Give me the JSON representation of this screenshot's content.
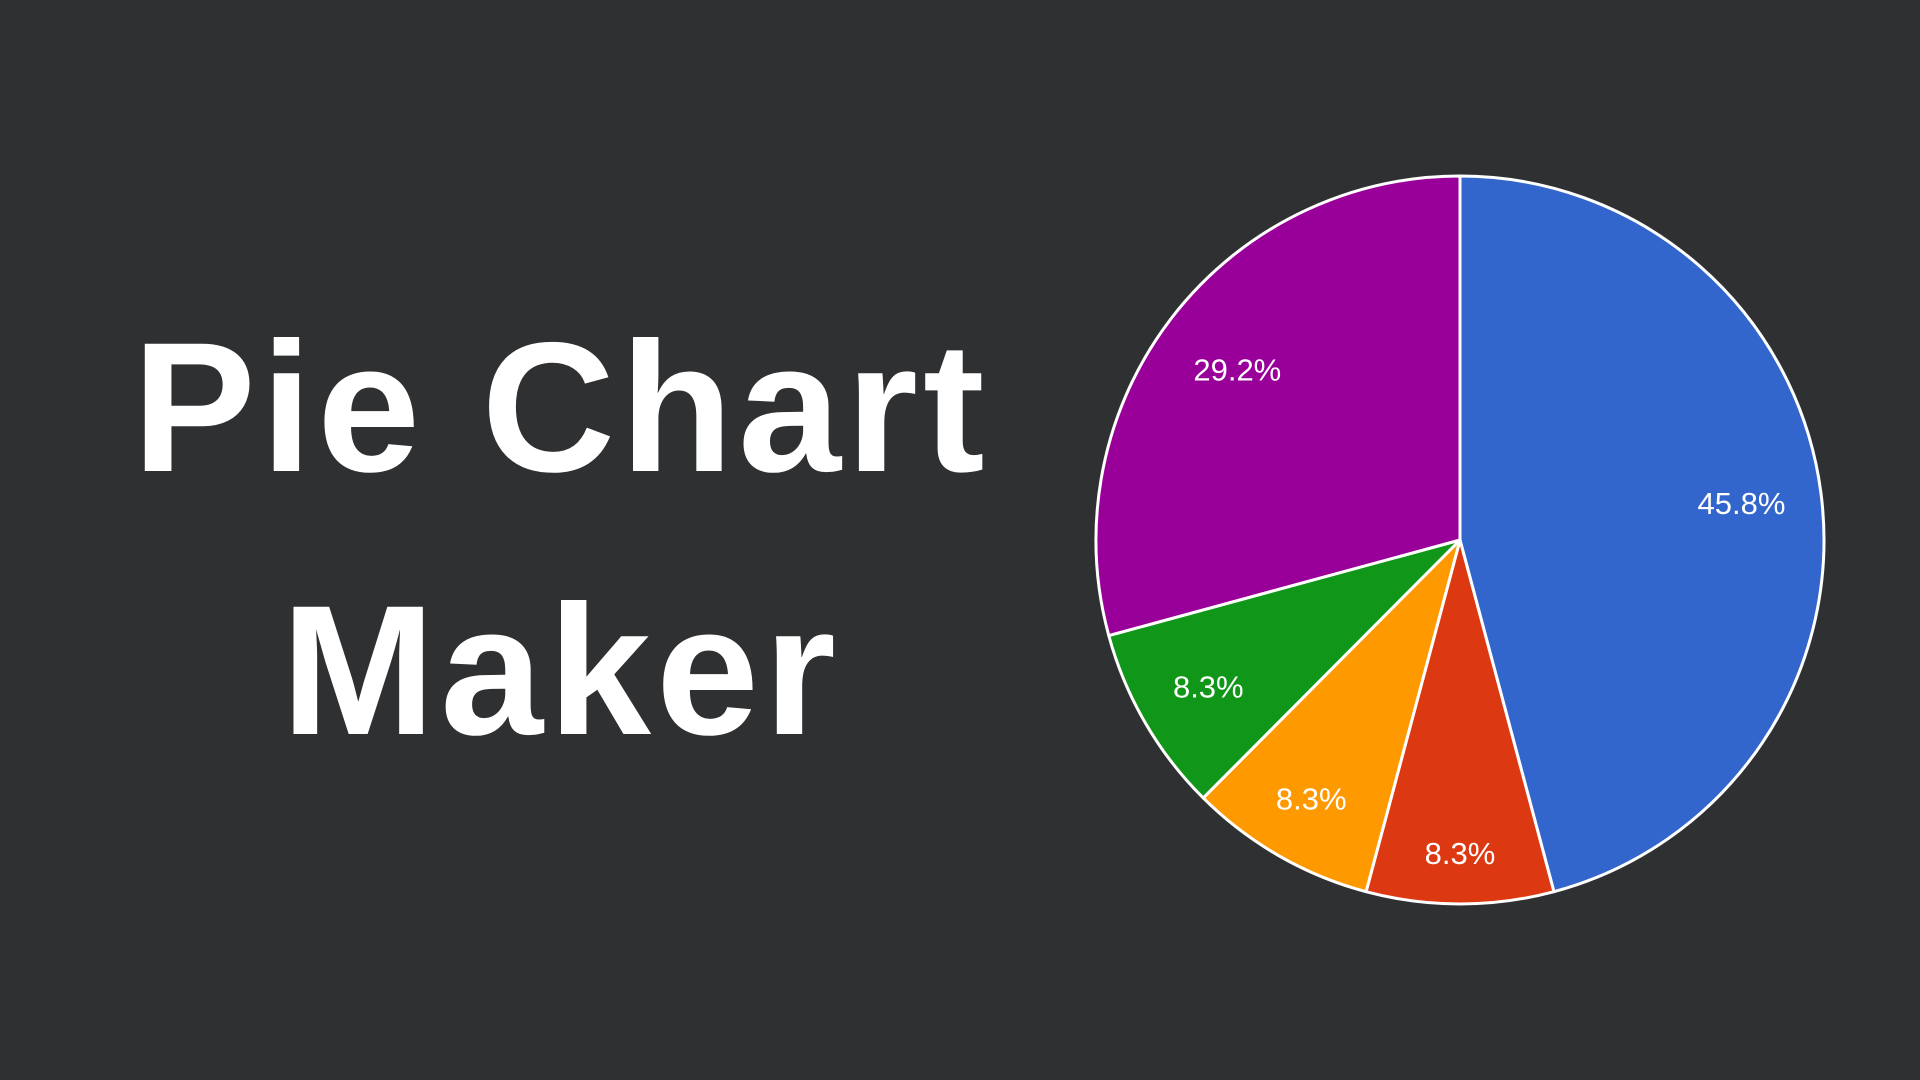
{
  "page": {
    "background_color": "#2f3032",
    "title": {
      "line1": "Pie Chart",
      "line2": "Maker",
      "color": "#ffffff"
    }
  },
  "chart_data": {
    "type": "pie",
    "title": "",
    "legend_position": "none",
    "start_at": "12-oclock",
    "direction": "clockwise",
    "slice_border_color": "#ffffff",
    "label_color": "#ffffff",
    "label_style": "percent-inside-slice",
    "slices": [
      {
        "label": "45.8%",
        "value": 45.8,
        "color": "#3366cc"
      },
      {
        "label": "8.3%",
        "value": 8.3,
        "color": "#dc3912"
      },
      {
        "label": "8.3%",
        "value": 8.3,
        "color": "#ff9900"
      },
      {
        "label": "8.3%",
        "value": 8.3,
        "color": "#109618"
      },
      {
        "label": "29.2%",
        "value": 29.2,
        "color": "#990099"
      }
    ]
  }
}
